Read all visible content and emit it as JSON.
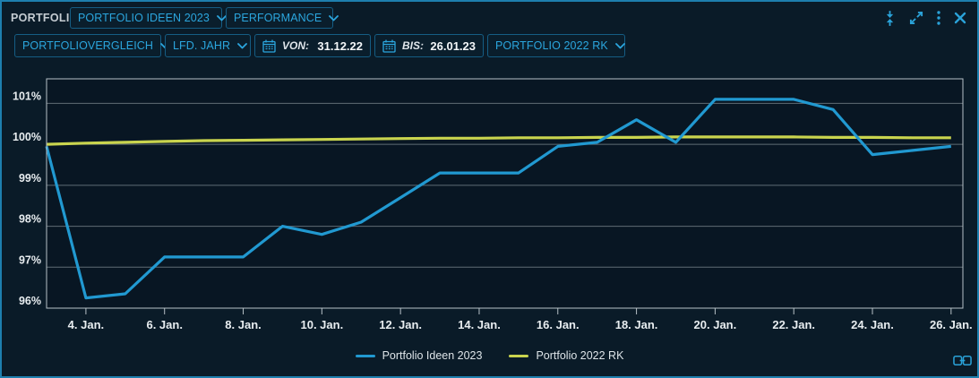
{
  "header": {
    "title": "PORTFOLIO",
    "portfolio_dropdown": "PORTFOLIO IDEEN 2023",
    "view_dropdown": "PERFORMANCE",
    "icons": [
      "collapse-vertical-icon",
      "expand-icon",
      "kebab-menu-icon",
      "close-icon"
    ]
  },
  "toolbar": {
    "comparison_dropdown": "PORTFOLIOVERGLEICH",
    "period_dropdown": "LFD. JAHR",
    "from_label": "VON:",
    "from_value": "31.12.22",
    "to_label": "BIS:",
    "to_value": "26.01.23",
    "benchmark_dropdown": "PORTFOLIO 2022 RK",
    "calendar_icon": "calendar-icon"
  },
  "footer": {
    "link_icon": "link-channel-icon"
  },
  "colors": {
    "accent_text": "#2ba6de",
    "widget_border": "#1e7fae",
    "box_border": "#155d84",
    "background": "#0a1b28",
    "plot_background": "#081623",
    "gridline": "#5f6c75",
    "axis_border": "#b7c1c7",
    "axis_text": "#e8edf0",
    "series1": "#2199d1",
    "series2": "#c9d44e"
  },
  "chart_data": {
    "type": "line",
    "title": "",
    "xlabel": "",
    "ylabel": "",
    "x_unit": "Januar 2023 (Tag des Monats)",
    "x_days": [
      3,
      4,
      5,
      6,
      7,
      8,
      9,
      10,
      11,
      12,
      13,
      14,
      15,
      16,
      17,
      18,
      19,
      20,
      21,
      22,
      23,
      24,
      25,
      26
    ],
    "x_tick_days": [
      4,
      6,
      8,
      10,
      12,
      14,
      16,
      18,
      20,
      22,
      24,
      26
    ],
    "x_tick_labels": [
      "4. Jan.",
      "6. Jan.",
      "8. Jan.",
      "10. Jan.",
      "12. Jan.",
      "14. Jan.",
      "16. Jan.",
      "18. Jan.",
      "20. Jan.",
      "22. Jan.",
      "24. Jan.",
      "26. Jan."
    ],
    "xlim": [
      3,
      26.3
    ],
    "y_ticks": [
      96,
      97,
      98,
      99,
      100,
      101
    ],
    "y_tick_labels": [
      "96%",
      "97%",
      "98%",
      "99%",
      "100%",
      "101%"
    ],
    "ylim": [
      96,
      101.6
    ],
    "grid": "horizontal",
    "legend_position": "bottom-center",
    "series": [
      {
        "name": "Portfolio Ideen 2023",
        "color": "#2199d1",
        "values": [
          99.95,
          96.25,
          96.35,
          97.25,
          97.25,
          97.25,
          98.0,
          97.8,
          98.1,
          98.7,
          99.3,
          99.3,
          99.3,
          99.95,
          100.05,
          100.6,
          100.05,
          101.1,
          101.1,
          101.1,
          100.85,
          99.75,
          99.85,
          99.95
        ]
      },
      {
        "name": "Portfolio 2022 RK",
        "color": "#c9d44e",
        "values": [
          100.0,
          100.03,
          100.05,
          100.07,
          100.09,
          100.1,
          100.11,
          100.12,
          100.13,
          100.14,
          100.15,
          100.15,
          100.16,
          100.16,
          100.17,
          100.17,
          100.18,
          100.18,
          100.18,
          100.18,
          100.17,
          100.17,
          100.16,
          100.16
        ]
      }
    ]
  }
}
